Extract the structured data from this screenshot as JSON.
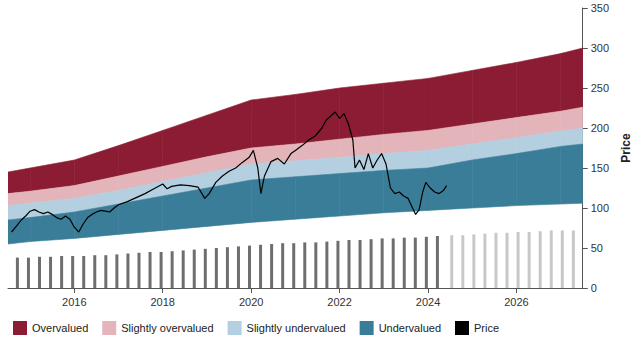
{
  "chart_data": {
    "type": "line",
    "ylabel": "Price",
    "xlim": [
      2014.5,
      2027.5
    ],
    "xticks": [
      2016,
      2018,
      2020,
      2022,
      2024,
      2026
    ],
    "ylim": [
      0,
      350
    ],
    "yticks": [
      0,
      50,
      100,
      150,
      200,
      250,
      300,
      350
    ],
    "grid": false,
    "legend": "bottom",
    "series": [
      {
        "name": "Overvalued",
        "type": "band",
        "color": "#8c1c33",
        "x": [
          2014.5,
          2015,
          2016,
          2017,
          2018,
          2019,
          2020,
          2021,
          2022,
          2023,
          2024,
          2025,
          2026,
          2027,
          2027.5
        ],
        "low": [
          118,
          121,
          128,
          140,
          152,
          164,
          175,
          180,
          186,
          192,
          197,
          205,
          213,
          221,
          226
        ],
        "high": [
          145,
          150,
          160,
          178,
          197,
          216,
          235,
          242,
          250,
          256,
          262,
          272,
          282,
          293,
          300
        ]
      },
      {
        "name": "Slightly overvalued",
        "type": "band",
        "color": "#e3b5ba",
        "x": [
          2014.5,
          2015,
          2016,
          2017,
          2018,
          2019,
          2020,
          2021,
          2022,
          2023,
          2024,
          2025,
          2026,
          2027,
          2027.5
        ],
        "low": [
          103,
          106,
          112,
          122,
          133,
          144,
          155,
          159,
          163,
          168,
          172,
          180,
          188,
          196,
          200
        ],
        "high": [
          118,
          121,
          128,
          140,
          152,
          164,
          175,
          180,
          186,
          192,
          197,
          205,
          213,
          221,
          226
        ]
      },
      {
        "name": "Slightly undervalued",
        "type": "band",
        "color": "#b3cfe0",
        "x": [
          2014.5,
          2015,
          2016,
          2017,
          2018,
          2019,
          2020,
          2021,
          2022,
          2023,
          2024,
          2025,
          2026,
          2027,
          2027.5
        ],
        "low": [
          85,
          88,
          95,
          105,
          115,
          125,
          135,
          139,
          143,
          147,
          150,
          160,
          168,
          177,
          180
        ],
        "high": [
          103,
          106,
          112,
          122,
          133,
          144,
          155,
          159,
          163,
          168,
          172,
          180,
          188,
          196,
          200
        ]
      },
      {
        "name": "Undervalued",
        "type": "band",
        "color": "#3a7d99",
        "x": [
          2014.5,
          2015,
          2016,
          2017,
          2018,
          2019,
          2020,
          2021,
          2022,
          2023,
          2024,
          2025,
          2026,
          2027,
          2027.5
        ],
        "low": [
          55,
          58,
          62,
          67,
          72,
          77,
          82,
          86,
          90,
          94,
          97,
          100,
          103,
          105,
          106
        ],
        "high": [
          85,
          88,
          95,
          105,
          115,
          125,
          135,
          139,
          143,
          147,
          150,
          160,
          168,
          177,
          180
        ]
      },
      {
        "type": "bar",
        "color": "#6e6e6e",
        "x": [
          2014.75,
          2015,
          2015.25,
          2015.5,
          2015.75,
          2016,
          2016.25,
          2016.5,
          2016.75,
          2017,
          2017.25,
          2017.5,
          2017.75,
          2018,
          2018.25,
          2018.5,
          2018.75,
          2019,
          2019.25,
          2019.5,
          2019.75,
          2020,
          2020.25,
          2020.5,
          2020.75,
          2021,
          2021.25,
          2021.5,
          2021.75,
          2022,
          2022.25,
          2022.5,
          2022.75,
          2023,
          2023.25,
          2023.5,
          2023.75,
          2024,
          2024.25
        ],
        "values": [
          38,
          38,
          39,
          39,
          40,
          40,
          40,
          41,
          41,
          42,
          43,
          44,
          45,
          45,
          46,
          47,
          48,
          49,
          50,
          51,
          52,
          53,
          54,
          55,
          56,
          56,
          57,
          57,
          58,
          59,
          60,
          60,
          61,
          62,
          62,
          63,
          63,
          64,
          65
        ]
      },
      {
        "type": "bar",
        "color": "#c8c8c8",
        "x": [
          2024.5,
          2024.75,
          2025,
          2025.25,
          2025.5,
          2025.75,
          2026,
          2026.25,
          2026.5,
          2026.75,
          2027,
          2027.25
        ],
        "values": [
          66,
          66,
          67,
          68,
          69,
          69,
          70,
          70,
          71,
          72,
          72,
          72
        ]
      },
      {
        "name": "Price",
        "type": "line",
        "color": "#000000",
        "x": [
          2014.58,
          2014.7,
          2014.8,
          2014.9,
          2015.0,
          2015.1,
          2015.2,
          2015.3,
          2015.4,
          2015.5,
          2015.6,
          2015.7,
          2015.8,
          2015.9,
          2016.0,
          2016.1,
          2016.2,
          2016.3,
          2016.4,
          2016.5,
          2016.6,
          2016.7,
          2016.8,
          2016.9,
          2017.0,
          2017.2,
          2017.4,
          2017.6,
          2017.8,
          2018.0,
          2018.1,
          2018.2,
          2018.4,
          2018.6,
          2018.8,
          2018.95,
          2019.05,
          2019.2,
          2019.35,
          2019.5,
          2019.65,
          2019.8,
          2019.95,
          2020.05,
          2020.15,
          2020.22,
          2020.3,
          2020.45,
          2020.6,
          2020.75,
          2020.9,
          2021.0,
          2021.15,
          2021.3,
          2021.45,
          2021.6,
          2021.7,
          2021.8,
          2021.9,
          2022.0,
          2022.1,
          2022.2,
          2022.3,
          2022.35,
          2022.45,
          2022.55,
          2022.65,
          2022.75,
          2022.85,
          2022.95,
          2023.05,
          2023.15,
          2023.25,
          2023.35,
          2023.45,
          2023.55,
          2023.65,
          2023.72,
          2023.8,
          2023.88,
          2023.95,
          2024.05,
          2024.15,
          2024.25,
          2024.35,
          2024.42
        ],
        "values": [
          70,
          78,
          85,
          90,
          96,
          98,
          95,
          93,
          95,
          92,
          88,
          86,
          90,
          86,
          76,
          70,
          80,
          88,
          92,
          95,
          97,
          96,
          95,
          100,
          104,
          108,
          113,
          118,
          124,
          130,
          124,
          127,
          129,
          128,
          126,
          112,
          118,
          132,
          140,
          146,
          150,
          157,
          163,
          172,
          150,
          118,
          140,
          158,
          162,
          155,
          168,
          172,
          178,
          185,
          190,
          200,
          210,
          215,
          220,
          212,
          218,
          205,
          185,
          150,
          160,
          148,
          168,
          150,
          160,
          168,
          155,
          125,
          118,
          120,
          115,
          112,
          100,
          92,
          98,
          120,
          132,
          125,
          120,
          118,
          122,
          128
        ]
      }
    ]
  }
}
